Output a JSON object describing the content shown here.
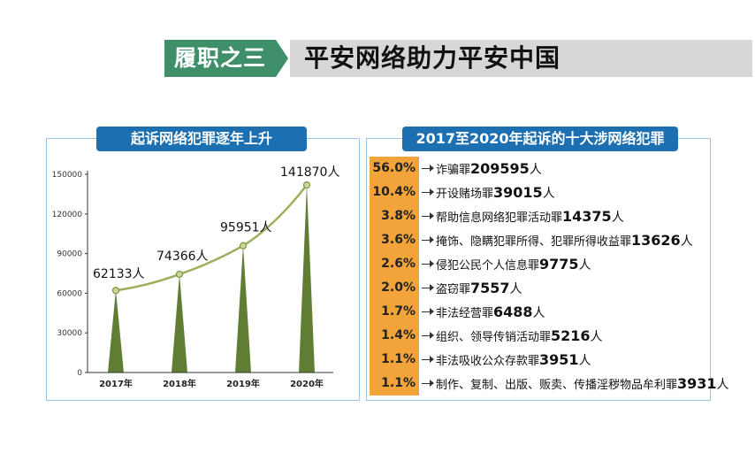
{
  "header": {
    "tag": "履职之三",
    "title": "平安网络助力平安中国"
  },
  "left_panel": {
    "title": "起诉网络犯罪逐年上升"
  },
  "right_panel": {
    "title": "2017至2020年起诉的十大涉网络犯罪",
    "items": [
      {
        "pct": "56.0%",
        "name": "诈骗罪",
        "count": "209595",
        "unit": "人"
      },
      {
        "pct": "10.4%",
        "name": "开设赌场罪",
        "count": "39015",
        "unit": "人"
      },
      {
        "pct": "3.8%",
        "name": "帮助信息网络犯罪活动罪",
        "count": "14375",
        "unit": "人"
      },
      {
        "pct": "3.6%",
        "name": "掩饰、隐瞒犯罪所得、犯罪所得收益罪",
        "count": "13626",
        "unit": "人"
      },
      {
        "pct": "2.6%",
        "name": "侵犯公民个人信息罪",
        "count": "9775",
        "unit": "人"
      },
      {
        "pct": "2.0%",
        "name": "盗窃罪",
        "count": "7557",
        "unit": "人"
      },
      {
        "pct": "1.7%",
        "name": "非法经营罪",
        "count": "6488",
        "unit": "人"
      },
      {
        "pct": "1.4%",
        "name": "组织、领导传销活动罪",
        "count": "5216",
        "unit": "人"
      },
      {
        "pct": "1.1%",
        "name": "非法吸收公众存款罪",
        "count": "3951",
        "unit": "人"
      },
      {
        "pct": "1.1%",
        "name": "制作、复制、出版、贩卖、传播淫秽物品牟利罪",
        "count": "3931",
        "unit": "人"
      }
    ]
  },
  "colors": {
    "accent_green": "#3e8f6a",
    "title_blue": "#1c6fb1",
    "spike_green": "#5f7d33",
    "pct_orange": "#f2a33a"
  },
  "chart_data": {
    "type": "line",
    "title": "起诉网络犯罪逐年上升",
    "categories": [
      "2017年",
      "2018年",
      "2019年",
      "2020年"
    ],
    "values": [
      62133,
      74366,
      95951,
      141870
    ],
    "data_labels": [
      "62133人",
      "74366人",
      "95951人",
      "141870人"
    ],
    "ylim": [
      0,
      150000
    ],
    "yticks": [
      0,
      30000,
      60000,
      90000,
      120000,
      150000
    ],
    "ytick_labels": [
      "0",
      "30000",
      "60000",
      "90000",
      "120000",
      "150000"
    ],
    "grid": false,
    "legend": "none"
  }
}
